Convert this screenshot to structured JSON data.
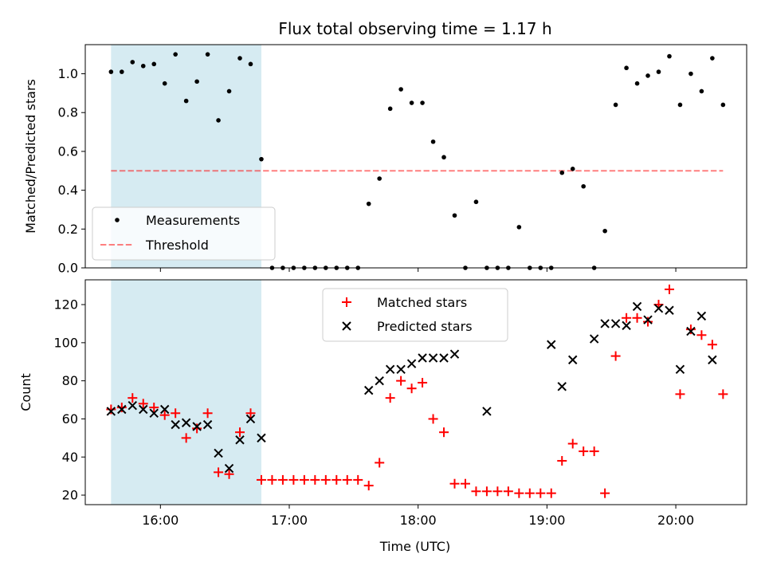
{
  "chart_data": {
    "title": "Flux total observing time = 1.17 h",
    "xlabel": "Time (UTC)",
    "x_ticks": [
      "16:00",
      "17:00",
      "18:00",
      "19:00",
      "20:00"
    ],
    "x_tick_hours": [
      16,
      17,
      18,
      19,
      20
    ],
    "xlim": [
      "15:25",
      "20:33"
    ],
    "shaded_span": [
      "15:37",
      "16:47"
    ],
    "top": {
      "type": "scatter",
      "ylabel": "Matched/Predicted stars",
      "ylim": [
        0,
        1.15
      ],
      "y_ticks": [
        0.0,
        0.2,
        0.4,
        0.6,
        0.8,
        1.0
      ],
      "threshold": 0.5,
      "threshold_range": [
        "15:37",
        "20:22"
      ],
      "legend": {
        "placement": "lower-left",
        "measurements": "Measurements",
        "threshold": "Threshold"
      },
      "series": {
        "x": [
          "15:37",
          "15:42",
          "15:47",
          "15:52",
          "15:57",
          "16:02",
          "16:07",
          "16:12",
          "16:17",
          "16:22",
          "16:27",
          "16:32",
          "16:37",
          "16:42",
          "16:47",
          "16:52",
          "16:57",
          "17:02",
          "17:07",
          "17:12",
          "17:17",
          "17:22",
          "17:27",
          "17:32",
          "17:37",
          "17:42",
          "17:47",
          "17:52",
          "17:57",
          "18:02",
          "18:07",
          "18:12",
          "18:17",
          "18:22",
          "18:27",
          "18:32",
          "18:37",
          "18:42",
          "18:47",
          "18:52",
          "18:57",
          "19:02",
          "19:07",
          "19:12",
          "19:17",
          "19:22",
          "19:27",
          "19:32",
          "19:37",
          "19:42",
          "19:47",
          "19:52",
          "19:57",
          "20:02",
          "20:07",
          "20:12",
          "20:17",
          "20:22"
        ],
        "y": [
          1.01,
          1.01,
          1.06,
          1.04,
          1.05,
          0.95,
          1.1,
          0.86,
          0.96,
          1.1,
          0.76,
          0.91,
          1.08,
          1.05,
          0.56,
          0,
          0,
          0,
          0,
          0,
          0,
          0,
          0,
          0,
          0.33,
          0.46,
          0.82,
          0.92,
          0.85,
          0.85,
          0.65,
          0.57,
          0.27,
          0,
          0.34,
          0,
          0,
          0,
          0.21,
          0,
          0,
          0,
          0.49,
          0.51,
          0.42,
          0,
          0.19,
          0.84,
          1.03,
          0.95,
          0.99,
          1.01,
          1.09,
          0.84,
          1.0,
          0.91,
          1.08,
          0.84
        ]
      }
    },
    "bottom": {
      "type": "scatter",
      "ylabel": "Count",
      "ylim": [
        15,
        133
      ],
      "y_ticks": [
        20,
        40,
        60,
        80,
        100,
        120
      ],
      "legend": {
        "placement": "upper-center",
        "matched": "Matched stars",
        "predicted": "Predicted stars"
      },
      "matched": {
        "x": [
          "15:37",
          "15:42",
          "15:47",
          "15:52",
          "15:57",
          "16:02",
          "16:07",
          "16:12",
          "16:17",
          "16:22",
          "16:27",
          "16:32",
          "16:37",
          "16:42",
          "16:47",
          "16:52",
          "16:57",
          "17:02",
          "17:07",
          "17:12",
          "17:17",
          "17:22",
          "17:27",
          "17:32",
          "17:37",
          "17:42",
          "17:47",
          "17:52",
          "17:57",
          "18:02",
          "18:07",
          "18:12",
          "18:17",
          "18:22",
          "18:27",
          "18:32",
          "18:37",
          "18:42",
          "18:47",
          "18:52",
          "18:57",
          "19:02",
          "19:07",
          "19:12",
          "19:17",
          "19:22",
          "19:27",
          "19:32",
          "19:37",
          "19:42",
          "19:47",
          "19:52",
          "19:57",
          "20:02",
          "20:07",
          "20:12",
          "20:17",
          "20:22"
        ],
        "y": [
          65,
          66,
          71,
          68,
          66,
          62,
          63,
          50,
          55,
          63,
          32,
          31,
          53,
          63,
          28,
          28,
          28,
          28,
          28,
          28,
          28,
          28,
          28,
          28,
          25,
          37,
          71,
          80,
          76,
          79,
          60,
          53,
          26,
          26,
          22,
          22,
          22,
          22,
          21,
          21,
          21,
          21,
          38,
          47,
          43,
          43,
          21,
          93,
          113,
          113,
          111,
          120,
          128,
          73,
          107,
          104,
          99,
          73
        ]
      },
      "predicted": {
        "x": [
          "15:37",
          "15:42",
          "15:47",
          "15:52",
          "15:57",
          "16:02",
          "16:07",
          "16:12",
          "16:17",
          "16:22",
          "16:27",
          "16:32",
          "16:37",
          "16:42",
          "16:47",
          "17:37",
          "17:42",
          "17:47",
          "17:52",
          "17:57",
          "18:02",
          "18:07",
          "18:12",
          "18:17",
          "18:32",
          "19:02",
          "19:07",
          "19:12",
          "19:22",
          "19:27",
          "19:32",
          "19:37",
          "19:42",
          "19:47",
          "19:52",
          "19:57",
          "20:02",
          "20:07",
          "20:12",
          "20:17"
        ],
        "y": [
          64,
          65,
          67,
          65,
          63,
          65,
          57,
          58,
          56,
          57,
          42,
          34,
          49,
          60,
          50,
          75,
          80,
          86,
          86,
          89,
          92,
          92,
          92,
          94,
          64,
          99,
          77,
          91,
          102,
          110,
          110,
          109,
          119,
          112,
          118,
          117,
          86,
          106,
          114,
          91
        ]
      }
    }
  }
}
